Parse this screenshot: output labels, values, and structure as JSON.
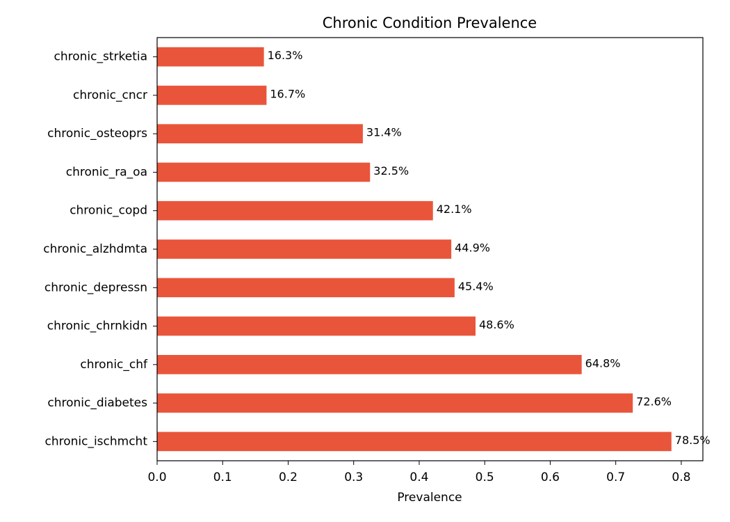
{
  "chart_data": {
    "type": "barh",
    "title": "Chronic Condition Prevalence",
    "xlabel": "Prevalence",
    "categories": [
      "chronic_strketia",
      "chronic_cncr",
      "chronic_osteoprs",
      "chronic_ra_oa",
      "chronic_copd",
      "chronic_alzhdmta",
      "chronic_depressn",
      "chronic_chrnkidn",
      "chronic_chf",
      "chronic_diabetes",
      "chronic_ischmcht"
    ],
    "values": [
      0.163,
      0.167,
      0.314,
      0.325,
      0.421,
      0.449,
      0.454,
      0.486,
      0.648,
      0.726,
      0.785
    ],
    "value_labels": [
      "16.3%",
      "16.7%",
      "31.4%",
      "32.5%",
      "42.1%",
      "44.9%",
      "45.4%",
      "48.6%",
      "64.8%",
      "72.6%",
      "78.5%"
    ],
    "color": "#e9553b",
    "xlim": [
      0,
      0.833
    ],
    "xticks": [
      {
        "value": 0,
        "label": "0.0"
      },
      0.1,
      0.2,
      0.3,
      0.4,
      0.5,
      0.6,
      0.7,
      0.8
    ]
  }
}
